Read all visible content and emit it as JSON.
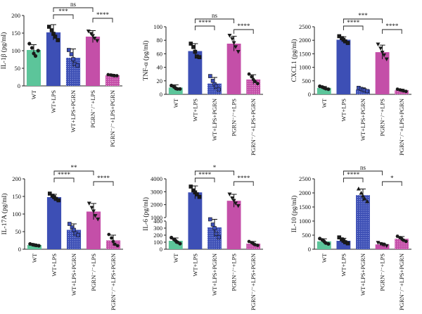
{
  "colors": {
    "WT": "#5cc59a",
    "WT+LPS": "#3d4fb5",
    "WT+LPS+PGRN": "#3d4fb5",
    "PGRN-/-+LPS": "#c44fa8",
    "PGRN-/-+LPS+PGRN": "#c44fa8",
    "hatched": true
  },
  "chart_data": [
    {
      "type": "bar",
      "ylabel": "IL-1β (pg/ml)",
      "ylim": [
        0,
        200
      ],
      "yticks": [
        0,
        50,
        100,
        150,
        200
      ],
      "categories": [
        "WT",
        "WT+LPS",
        "WT+LPS+PGRN",
        "PGRN⁻/⁻+LPS",
        "PGRN⁻/⁻+LPS+PGRN"
      ],
      "values": [
        102,
        152,
        80,
        140,
        30
      ],
      "errors": [
        15,
        22,
        25,
        17,
        3
      ],
      "points": [
        [
          120,
          108,
          92,
          85,
          100
        ],
        [
          168,
          158,
          148,
          140,
          130
        ],
        [
          102,
          90,
          76,
          62,
          58
        ],
        [
          155,
          148,
          142,
          135,
          128
        ],
        [
          32,
          31,
          30,
          29,
          29
        ]
      ],
      "markers": [
        "circle",
        "square",
        "square-blue",
        "triangle-down",
        "hex"
      ],
      "brackets": [
        {
          "from": 1,
          "to": 2,
          "label": "***",
          "level": 1
        },
        {
          "from": 1,
          "to": 3,
          "label": "ns",
          "level": 2
        },
        {
          "from": 3,
          "to": 4,
          "label": "****",
          "level": 1
        }
      ]
    },
    {
      "type": "bar",
      "ylabel": "TNF-α (pg/ml)",
      "ylim": [
        0,
        100
      ],
      "yticks": [
        0,
        20,
        40,
        60,
        80,
        100
      ],
      "categories": [
        "WT",
        "WT+LPS",
        "WT+LPS+PGRN",
        "PGRN⁻/⁻+LPS",
        "PGRN⁻/⁻+LPS+PGRN"
      ],
      "values": [
        10,
        64,
        16,
        75,
        22
      ],
      "errors": [
        4,
        11,
        9,
        11,
        7
      ],
      "points": [
        [
          13,
          11,
          9,
          8,
          8
        ],
        [
          75,
          70,
          63,
          56,
          55
        ],
        [
          27,
          20,
          15,
          12,
          7
        ],
        [
          87,
          82,
          76,
          70,
          63
        ],
        [
          30,
          26,
          22,
          19,
          16
        ]
      ],
      "markers": [
        "circle",
        "square",
        "square-blue",
        "triangle-down",
        "hex"
      ],
      "brackets": [
        {
          "from": 1,
          "to": 2,
          "label": "****",
          "level": 1
        },
        {
          "from": 1,
          "to": 3,
          "label": "ns",
          "level": 2
        },
        {
          "from": 3,
          "to": 4,
          "label": "****",
          "level": 1
        }
      ]
    },
    {
      "type": "bar",
      "ylabel": "CXCL1 (pg/ml)",
      "ylim": [
        0,
        2500
      ],
      "yticks": [
        0,
        500,
        1000,
        1500,
        2000,
        2500
      ],
      "categories": [
        "WT",
        "WT+LPS",
        "WT+LPS+PGRN",
        "PGRN⁻/⁻+LPS",
        "PGRN⁻/⁻+LPS+PGRN"
      ],
      "values": [
        240,
        2020,
        180,
        1560,
        150
      ],
      "errors": [
        50,
        110,
        60,
        260,
        40
      ],
      "points": [
        [
          300,
          270,
          240,
          210,
          190
        ],
        [
          2150,
          2080,
          2020,
          1960,
          1900
        ],
        [
          240,
          200,
          170,
          150,
          120
        ],
        [
          1850,
          1700,
          1550,
          1450,
          1300
        ],
        [
          190,
          165,
          150,
          130,
          110
        ]
      ],
      "markers": [
        "circle",
        "square",
        "square-blue",
        "triangle-down",
        "hex"
      ],
      "brackets": [
        {
          "from": 1,
          "to": 2,
          "label": "****",
          "level": 1
        },
        {
          "from": 1,
          "to": 3,
          "label": "***",
          "level": 2
        },
        {
          "from": 3,
          "to": 4,
          "label": "****",
          "level": 1
        }
      ]
    },
    {
      "type": "bar",
      "ylabel": "IL-17A (pg/ml)",
      "ylim": [
        0,
        200
      ],
      "yticks": [
        0,
        50,
        100,
        150,
        200
      ],
      "categories": [
        "WT",
        "WT+LPS",
        "WT+LPS+PGRN",
        "PGRN⁻/⁻+LPS",
        "PGRN⁻/⁻+LPS+PGRN"
      ],
      "values": [
        12,
        148,
        55,
        107,
        25
      ],
      "errors": [
        3,
        8,
        17,
        23,
        15
      ],
      "points": [
        [
          15,
          13,
          12,
          11,
          10
        ],
        [
          158,
          152,
          148,
          143,
          139
        ],
        [
          72,
          62,
          55,
          45,
          40
        ],
        [
          130,
          118,
          108,
          95,
          85
        ],
        [
          42,
          32,
          22,
          14,
          10
        ]
      ],
      "markers": [
        "circle",
        "square",
        "square-blue",
        "triangle-down",
        "hex"
      ],
      "brackets": [
        {
          "from": 1,
          "to": 2,
          "label": "****",
          "level": 1
        },
        {
          "from": 1,
          "to": 3,
          "label": "**",
          "level": 2
        },
        {
          "from": 3,
          "to": 4,
          "label": "****",
          "level": 1
        }
      ]
    },
    {
      "type": "bar",
      "ylabel": "IL-6 (pg/ml)",
      "broken_axis": true,
      "ylim": [
        0,
        4000
      ],
      "yticks": [
        0,
        100,
        200,
        300,
        400,
        1000,
        2000,
        3000,
        4000
      ],
      "categories": [
        "WT",
        "WT+LPS",
        "WT+LPS+PGRN",
        "PGRN⁻/⁻+LPS",
        "PGRN⁻/⁻+LPS+PGRN"
      ],
      "values": [
        120,
        2950,
        310,
        2300,
        80
      ],
      "errors": [
        40,
        500,
        130,
        500,
        30
      ],
      "points": [
        [
          165,
          140,
          120,
          100,
          80
        ],
        [
          3400,
          3100,
          2950,
          2800,
          2600
        ],
        [
          420,
          350,
          300,
          220,
          170
        ],
        [
          2800,
          2500,
          2300,
          2100,
          1900
        ],
        [
          110,
          95,
          80,
          65,
          55
        ]
      ],
      "markers": [
        "circle",
        "square",
        "square-blue",
        "triangle-down",
        "hex"
      ],
      "brackets": [
        {
          "from": 1,
          "to": 2,
          "label": "****",
          "level": 1
        },
        {
          "from": 1,
          "to": 3,
          "label": "*",
          "level": 2
        },
        {
          "from": 3,
          "to": 4,
          "label": "****",
          "level": 1
        }
      ]
    },
    {
      "type": "bar",
      "ylabel": "IL-10 (pg/ml)",
      "ylim": [
        0,
        2500
      ],
      "yticks": [
        0,
        500,
        1000,
        1500,
        2000,
        2500
      ],
      "categories": [
        "WT",
        "WT+LPS",
        "WT+LPS+PGRN",
        "PGRN⁻/⁻+LPS",
        "PGRN⁻/⁻+LPS+PGRN"
      ],
      "values": [
        280,
        300,
        1920,
        170,
        370
      ],
      "errors": [
        90,
        90,
        220,
        50,
        80
      ],
      "points": [
        [
          380,
          330,
          280,
          220,
          190
        ],
        [
          420,
          350,
          300,
          250,
          210
        ],
        [
          2150,
          2000,
          1900,
          1800,
          1700
        ],
        [
          230,
          190,
          170,
          150,
          120
        ],
        [
          460,
          410,
          370,
          320,
          280
        ]
      ],
      "markers": [
        "circle",
        "square",
        "triangle-up",
        "triangle-down",
        "hex"
      ],
      "brackets": [
        {
          "from": 1,
          "to": 2,
          "label": "****",
          "level": 1
        },
        {
          "from": 1,
          "to": 3,
          "label": "ns",
          "level": 2
        },
        {
          "from": 3,
          "to": 4,
          "label": "*",
          "level": 1
        }
      ]
    }
  ]
}
